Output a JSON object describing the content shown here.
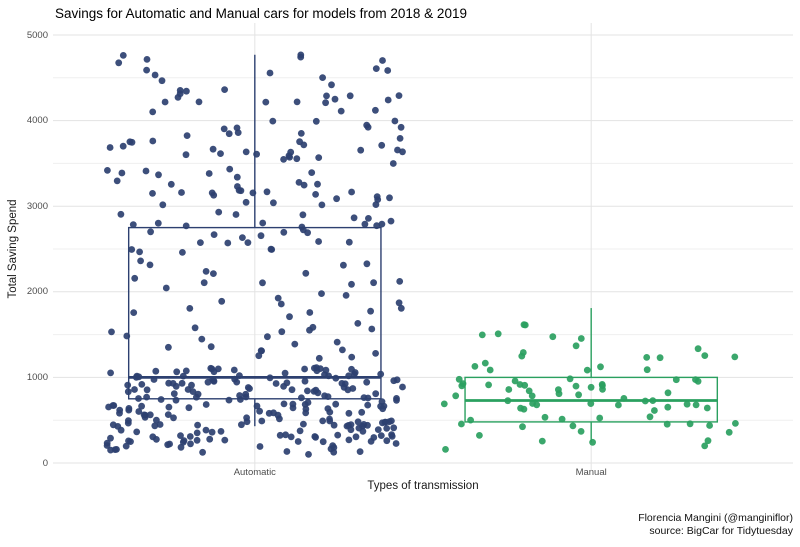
{
  "title": "Savings for Automatic and Manual cars for models from 2018 & 2019",
  "caption": {
    "line1": "Florencia Mangini (@manginiflor)",
    "line2": "source: BigCar for Tidytuesday"
  },
  "chart_data": {
    "type": "boxplot-jitter",
    "title": "Savings for Automatic and Manual cars for models from 2018 & 2019",
    "xlabel": "Types of transmission",
    "ylabel": "Total Saving Spend",
    "ylim": [
      0,
      5000
    ],
    "y_major_ticks": [
      0,
      1000,
      2000,
      3000,
      4000,
      5000
    ],
    "y_minor_ticks": [
      500,
      1500,
      2500,
      3500,
      4500
    ],
    "grid": true,
    "legend": "none",
    "categories": [
      "Automatic",
      "Manual"
    ],
    "background": "#ffffff",
    "grid_major_color": "#e3e3e3",
    "grid_minor_color": "#efefef",
    "jitter_half_width_units": 0.44,
    "series": [
      {
        "name": "Automatic",
        "color": "#2d4070",
        "n_points": 400,
        "box": {
          "whisker_low": 430,
          "q1": 750,
          "median": 1000,
          "q3": 2750,
          "whisker_high": 4770
        },
        "value_range": [
          100,
          4800
        ],
        "strata": [
          {
            "range": [
              100,
              450
            ],
            "weight": 0.18
          },
          {
            "range": [
              450,
              750
            ],
            "weight": 0.16
          },
          {
            "range": [
              750,
              1100
            ],
            "weight": 0.2
          },
          {
            "range": [
              1100,
              1600
            ],
            "weight": 0.06
          },
          {
            "range": [
              1600,
              2200
            ],
            "weight": 0.05
          },
          {
            "range": [
              2200,
              2750
            ],
            "weight": 0.06
          },
          {
            "range": [
              2750,
              3300
            ],
            "weight": 0.1
          },
          {
            "range": [
              3300,
              3900
            ],
            "weight": 0.09
          },
          {
            "range": [
              3900,
              4500
            ],
            "weight": 0.07
          },
          {
            "range": [
              4500,
              4800
            ],
            "weight": 0.03
          }
        ]
      },
      {
        "name": "Manual",
        "color": "#2aa05f",
        "n_points": 80,
        "box": {
          "whisker_low": 240,
          "q1": 480,
          "median": 730,
          "q3": 1000,
          "whisker_high": 1810
        },
        "value_range": [
          150,
          1820
        ],
        "strata": [
          {
            "range": [
              150,
              420
            ],
            "weight": 0.1
          },
          {
            "range": [
              420,
              700
            ],
            "weight": 0.3
          },
          {
            "range": [
              700,
              1000
            ],
            "weight": 0.35
          },
          {
            "range": [
              1000,
              1300
            ],
            "weight": 0.15
          },
          {
            "range": [
              1300,
              1550
            ],
            "weight": 0.08
          },
          {
            "range": [
              1550,
              1820
            ],
            "weight": 0.02
          }
        ]
      }
    ]
  }
}
